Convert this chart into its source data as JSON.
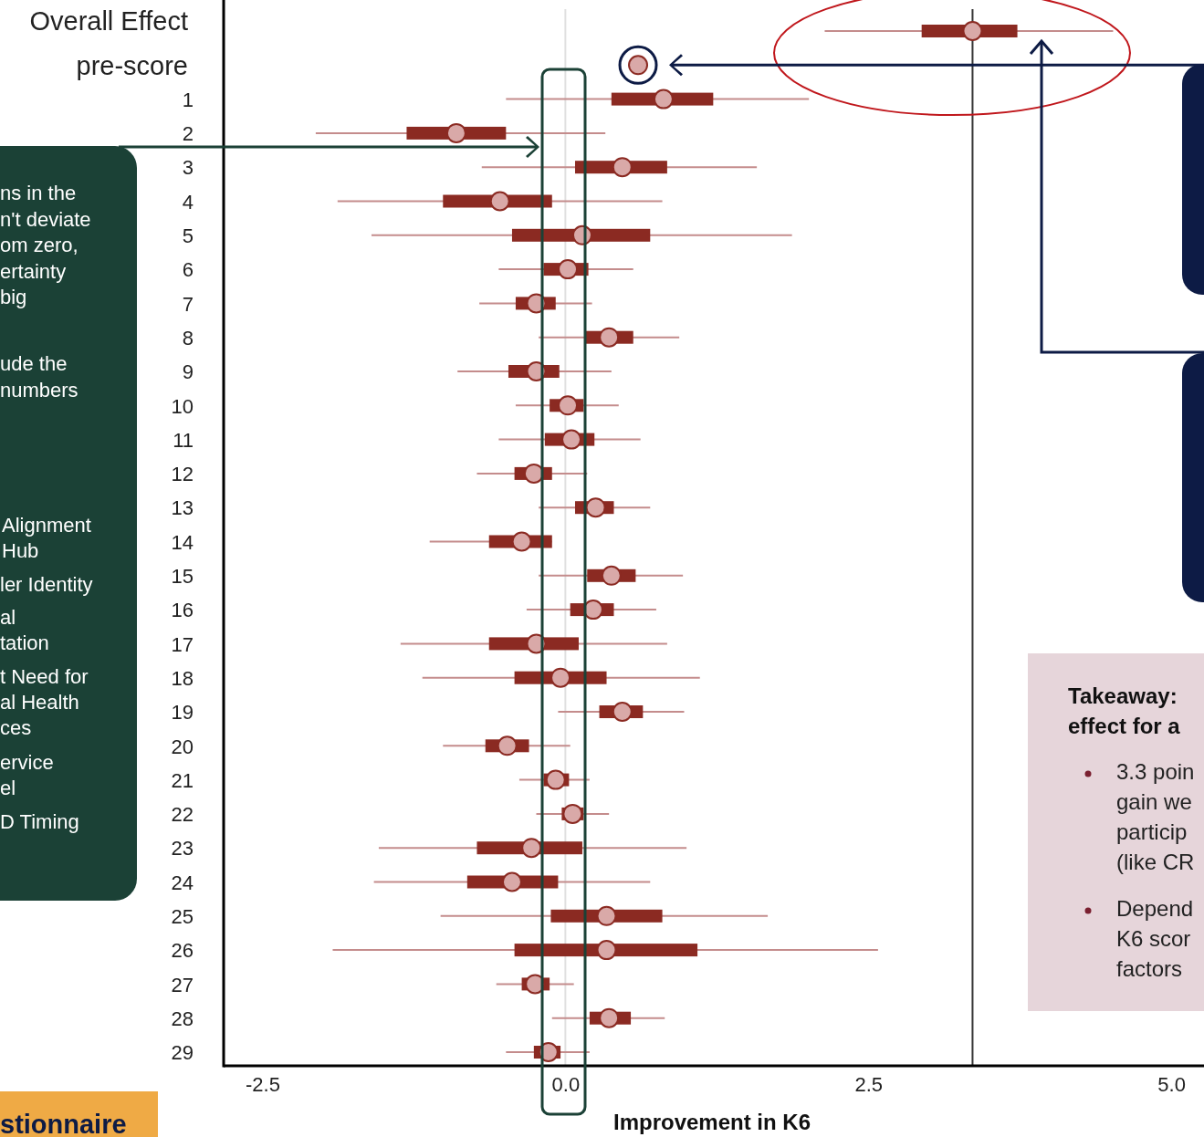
{
  "chart_data": {
    "type": "box",
    "orientation": "horizontal",
    "xlabel": "Improvement in K6",
    "categories": [
      "Overall Effect",
      "pre-score",
      "1",
      "2",
      "3",
      "4",
      "5",
      "6",
      "7",
      "8",
      "9",
      "10",
      "11",
      "12",
      "13",
      "14",
      "15",
      "16",
      "17",
      "18",
      "19",
      "20",
      "21",
      "22",
      "23",
      "24",
      "25",
      "26",
      "27",
      "28",
      "29"
    ],
    "xlim": [
      -2.82,
      5.27
    ],
    "xticks": [
      -2.5,
      {
        "value": 0,
        "label": "0.0"
      },
      2.5,
      {
        "value": 5,
        "label": "5.0"
      }
    ],
    "color": "#8b2a22",
    "boxes": [
      {
        "low": 2.14,
        "q1": 2.94,
        "median": 3.36,
        "q3": 3.73,
        "high": 4.52
      },
      null,
      {
        "low": -0.49,
        "q1": 0.38,
        "median": 0.81,
        "q3": 1.22,
        "high": 2.01
      },
      {
        "low": -2.06,
        "q1": -1.31,
        "median": -0.9,
        "q3": -0.49,
        "high": 0.33
      },
      {
        "low": -0.69,
        "q1": 0.08,
        "median": 0.47,
        "q3": 0.84,
        "high": 1.58
      },
      {
        "low": -1.88,
        "q1": -1.01,
        "median": -0.54,
        "q3": -0.11,
        "high": 0.8
      },
      {
        "low": -1.6,
        "q1": -0.44,
        "median": 0.14,
        "q3": 0.7,
        "high": 1.87
      },
      {
        "low": -0.55,
        "q1": -0.18,
        "median": 0.02,
        "q3": 0.19,
        "high": 0.56
      },
      {
        "low": -0.71,
        "q1": -0.41,
        "median": -0.24,
        "q3": -0.08,
        "high": 0.22
      },
      {
        "low": -0.22,
        "q1": 0.17,
        "median": 0.36,
        "q3": 0.56,
        "high": 0.94
      },
      {
        "low": -0.89,
        "q1": -0.47,
        "median": -0.24,
        "q3": -0.05,
        "high": 0.38
      },
      {
        "low": -0.41,
        "q1": -0.13,
        "median": 0.02,
        "q3": 0.15,
        "high": 0.44
      },
      {
        "low": -0.55,
        "q1": -0.17,
        "median": 0.05,
        "q3": 0.24,
        "high": 0.62
      },
      {
        "low": -0.73,
        "q1": -0.42,
        "median": -0.26,
        "q3": -0.11,
        "high": 0.18
      },
      {
        "low": -0.22,
        "q1": 0.08,
        "median": 0.25,
        "q3": 0.4,
        "high": 0.7
      },
      {
        "low": -1.12,
        "q1": -0.63,
        "median": -0.36,
        "q3": -0.11,
        "high": -0.11
      },
      {
        "low": -0.22,
        "q1": 0.18,
        "median": 0.38,
        "q3": 0.58,
        "high": 0.97
      },
      {
        "low": -0.32,
        "q1": 0.04,
        "median": 0.23,
        "q3": 0.4,
        "high": 0.75
      },
      {
        "low": -1.36,
        "q1": -0.63,
        "median": -0.24,
        "q3": 0.11,
        "high": 0.84
      },
      {
        "low": -1.18,
        "q1": -0.42,
        "median": -0.04,
        "q3": 0.34,
        "high": 1.11
      },
      {
        "low": -0.06,
        "q1": 0.28,
        "median": 0.47,
        "q3": 0.64,
        "high": 0.98
      },
      {
        "low": -1.01,
        "q1": -0.66,
        "median": -0.48,
        "q3": -0.3,
        "high": 0.04
      },
      {
        "low": -0.38,
        "q1": -0.18,
        "median": -0.08,
        "q3": 0.03,
        "high": 0.2
      },
      {
        "low": -0.24,
        "q1": -0.03,
        "median": 0.06,
        "q3": 0.15,
        "high": 0.36
      },
      {
        "low": -1.54,
        "q1": -0.73,
        "median": -0.28,
        "q3": 0.14,
        "high": 1.0
      },
      {
        "low": -1.58,
        "q1": -0.81,
        "median": -0.44,
        "q3": -0.06,
        "high": 0.7
      },
      {
        "low": -1.03,
        "q1": -0.12,
        "median": 0.34,
        "q3": 0.8,
        "high": 1.67
      },
      {
        "low": -1.92,
        "q1": -0.42,
        "median": 0.34,
        "q3": 1.09,
        "high": 2.58
      },
      {
        "low": -0.57,
        "q1": -0.36,
        "median": -0.25,
        "q3": -0.13,
        "high": 0.07
      },
      {
        "low": -0.11,
        "q1": 0.2,
        "median": 0.36,
        "q3": 0.54,
        "high": 0.82
      },
      {
        "low": -0.49,
        "q1": -0.26,
        "median": -0.14,
        "q3": -0.04,
        "high": 0.2
      }
    ],
    "series": [
      {
        "type": "scatter",
        "color": "#d9a9a8",
        "x": [
          "pre-score"
        ],
        "values": [
          0.6
        ]
      }
    ],
    "ref_lines": [
      {
        "axis": "x",
        "value": 0,
        "color": "#e0e0e0"
      },
      {
        "axis": "x",
        "value": 3.36,
        "color": "#333333"
      }
    ],
    "annotations": [
      "ns in the\nn't deviate\nom zero,\nertainty\nbig",
      "ude the\nnumbers",
      "Alignment\nHub",
      "ler Identity",
      "al\ntation",
      "t Need for\nal Health\nces",
      "ervice\nel",
      "D Timing",
      "Takeaway:\neffect for a",
      "3.3 poin\ngain we\nparticip\n(like CR",
      "Depend\nK6 scor\nfactors",
      "stionnaire"
    ]
  }
}
